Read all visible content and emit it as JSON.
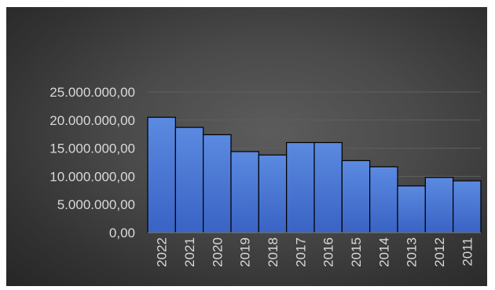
{
  "chart_data": {
    "type": "bar",
    "title": "",
    "xlabel": "",
    "ylabel": "",
    "categories": [
      "2022",
      "2021",
      "2020",
      "2019",
      "2018",
      "2017",
      "2016",
      "2015",
      "2014",
      "2013",
      "2012",
      "2011"
    ],
    "values": [
      20500000,
      18700000,
      17400000,
      14400000,
      13800000,
      16000000,
      16000000,
      12800000,
      11700000,
      8300000,
      9800000,
      9200000
    ],
    "ylim": [
      0,
      25000000
    ],
    "yticks": [
      0,
      5000000,
      10000000,
      15000000,
      20000000,
      25000000
    ],
    "ytick_labels": [
      "0,00",
      "5.000.000,00",
      "10.000.000,00",
      "15.000.000,00",
      "20.000.000,00",
      "25.000.000,00"
    ],
    "grid": true,
    "legend": "none",
    "colors": {
      "bar_fill_top": "#5b8ae0",
      "bar_fill_bottom": "#3a63c4",
      "background": "#404040",
      "text": "#d9d9d9"
    }
  }
}
